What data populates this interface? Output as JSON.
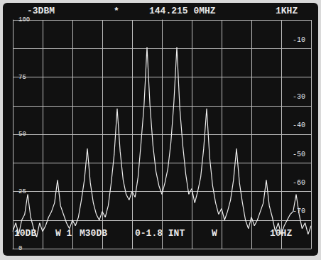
{
  "chart_data": {
    "type": "line",
    "annotations": [
      "-3DBM",
      "*",
      "144.215 0MHZ",
      "1KHZ",
      "10DB",
      "W 1",
      "M30DB",
      "0-1.8 INT",
      "W",
      "10HZ"
    ],
    "x": [
      -5.0,
      -4.9,
      -4.8,
      -4.7,
      -4.6,
      -4.5,
      -4.4,
      -4.3,
      -4.2,
      -4.1,
      -4.0,
      -3.9,
      -3.8,
      -3.7,
      -3.6,
      -3.5,
      -3.4,
      -3.3,
      -3.2,
      -3.1,
      -3.0,
      -2.9,
      -2.8,
      -2.7,
      -2.6,
      -2.5,
      -2.4,
      -2.3,
      -2.2,
      -2.1,
      -2.0,
      -1.9,
      -1.8,
      -1.7,
      -1.6,
      -1.5,
      -1.4,
      -1.3,
      -1.2,
      -1.1,
      -1.0,
      -0.9,
      -0.8,
      -0.7,
      -0.6,
      -0.5,
      -0.4,
      -0.3,
      -0.2,
      -0.1,
      0.0,
      0.1,
      0.2,
      0.3,
      0.4,
      0.5,
      0.6,
      0.7,
      0.8,
      0.9,
      1.0,
      1.1,
      1.2,
      1.3,
      1.4,
      1.5,
      1.6,
      1.7,
      1.8,
      1.9,
      2.0,
      2.1,
      2.2,
      2.3,
      2.4,
      2.5,
      2.6,
      2.7,
      2.8,
      2.9,
      3.0,
      3.1,
      3.2,
      3.3,
      3.4,
      3.5,
      3.6,
      3.7,
      3.8,
      3.9,
      4.0,
      4.1,
      4.2,
      4.3,
      4.4,
      4.5,
      4.6,
      4.7,
      4.8,
      4.9,
      5.0
    ],
    "values": [
      -77,
      -74,
      -78,
      -73,
      -71,
      -64,
      -72,
      -76,
      -79,
      -74,
      -77,
      -75,
      -72,
      -70,
      -67,
      -59,
      -68,
      -71,
      -74,
      -76,
      -73,
      -75,
      -72,
      -66,
      -59,
      -48,
      -60,
      -67,
      -71,
      -73,
      -70,
      -72,
      -68,
      -60,
      -50,
      -34,
      -49,
      -59,
      -64,
      -66,
      -63,
      -65,
      -58,
      -46,
      -33,
      -12.5,
      -33,
      -47,
      -56,
      -61,
      -64,
      -60,
      -55,
      -46,
      -32,
      -12.5,
      -34,
      -47,
      -57,
      -64,
      -62,
      -67,
      -63,
      -58,
      -48,
      -34,
      -51,
      -61,
      -67,
      -71,
      -69,
      -73,
      -70,
      -66,
      -59,
      -48,
      -60,
      -67,
      -73,
      -76,
      -72,
      -75,
      -73,
      -70,
      -67,
      -59,
      -68,
      -72,
      -77,
      -74,
      -78,
      -75,
      -73,
      -71,
      -70,
      -64,
      -71,
      -76,
      -74,
      -78,
      -75
    ],
    "color": "#eeeeee",
    "xlim": [
      -5,
      5
    ],
    "xticks": [
      -5,
      -4,
      -3,
      -2,
      -1,
      0,
      1,
      2,
      3,
      4,
      5
    ],
    "ylim": [
      -83,
      -3
    ],
    "yticks": [
      -10,
      -30,
      -40,
      -50,
      -60,
      -70
    ],
    "y2lim": [
      0,
      100
    ],
    "y2ticks": [
      25,
      50,
      75,
      100
    ],
    "grid": true,
    "tick_labels": "y"
  }
}
